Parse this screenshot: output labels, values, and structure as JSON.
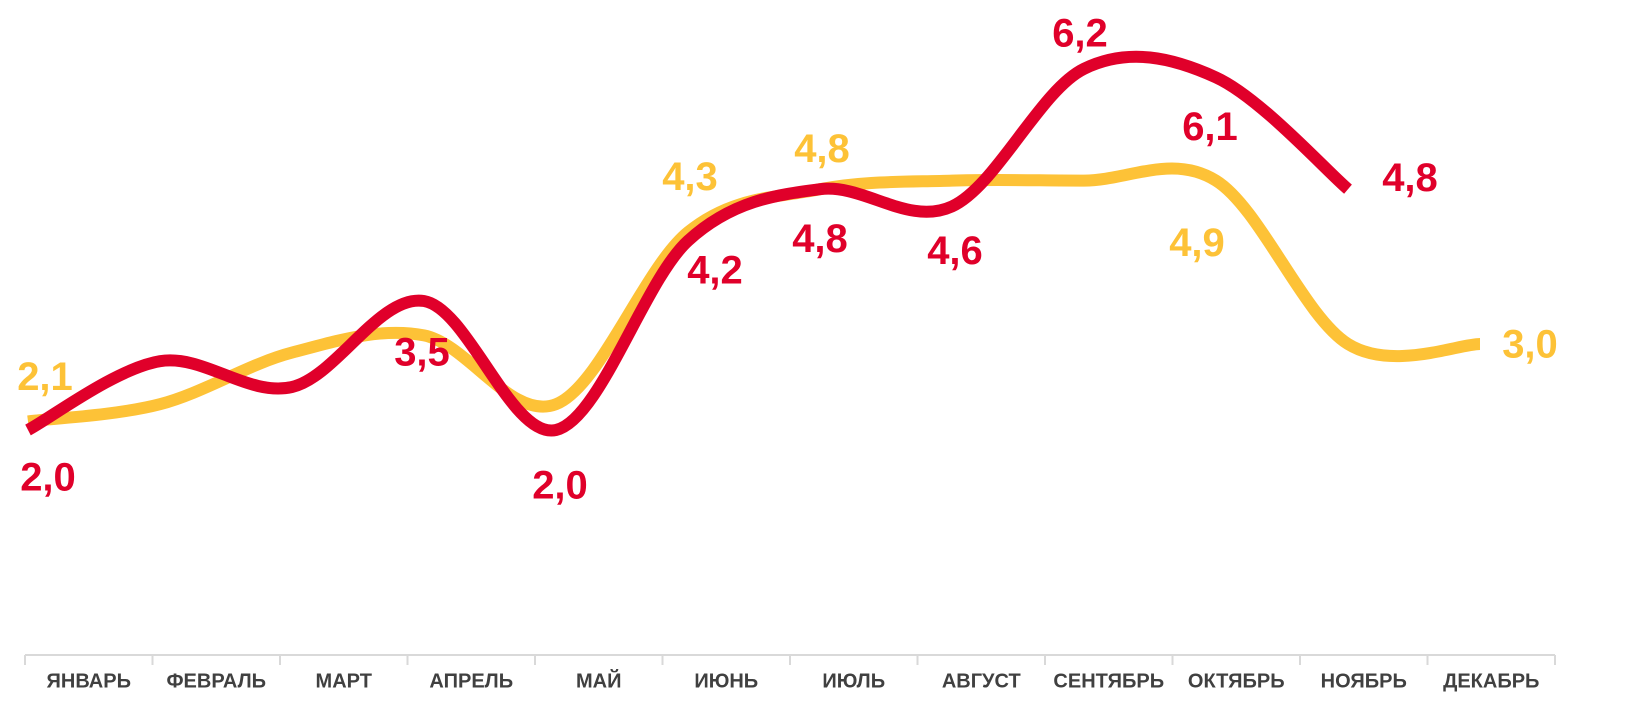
{
  "chart_data": {
    "type": "line",
    "categories": [
      "ЯНВАРЬ",
      "ФЕВРАЛЬ",
      "МАРТ",
      "АПРЕЛЬ",
      "МАЙ",
      "ИЮНЬ",
      "ИЮЛЬ",
      "АВГУСТ",
      "СЕНТЯБРЬ",
      "ОКТЯБРЬ",
      "НОЯБРЬ",
      "ДЕКАБРЬ"
    ],
    "series": [
      {
        "color": "#fdc237",
        "values": [
          2.1,
          2.3,
          2.9,
          3.1,
          2.3,
          4.3,
          4.8,
          4.9,
          4.9,
          4.9,
          3.0,
          3.0
        ],
        "value_labels": [
          "2,1",
          null,
          null,
          null,
          null,
          "4,3",
          "4,8",
          null,
          null,
          "4,9",
          null,
          "3,0"
        ]
      },
      {
        "color": "#e0002a",
        "values": [
          2.0,
          2.8,
          2.5,
          3.5,
          2.0,
          4.2,
          4.8,
          4.6,
          6.2,
          6.1,
          4.8,
          null
        ],
        "value_labels": [
          "2,0",
          null,
          null,
          "3,5",
          "2,0",
          "4,2",
          "4,8",
          "4,6",
          "6,2",
          "6,1",
          "4,8",
          null
        ]
      }
    ],
    "ylim": [
      0,
      7
    ]
  }
}
